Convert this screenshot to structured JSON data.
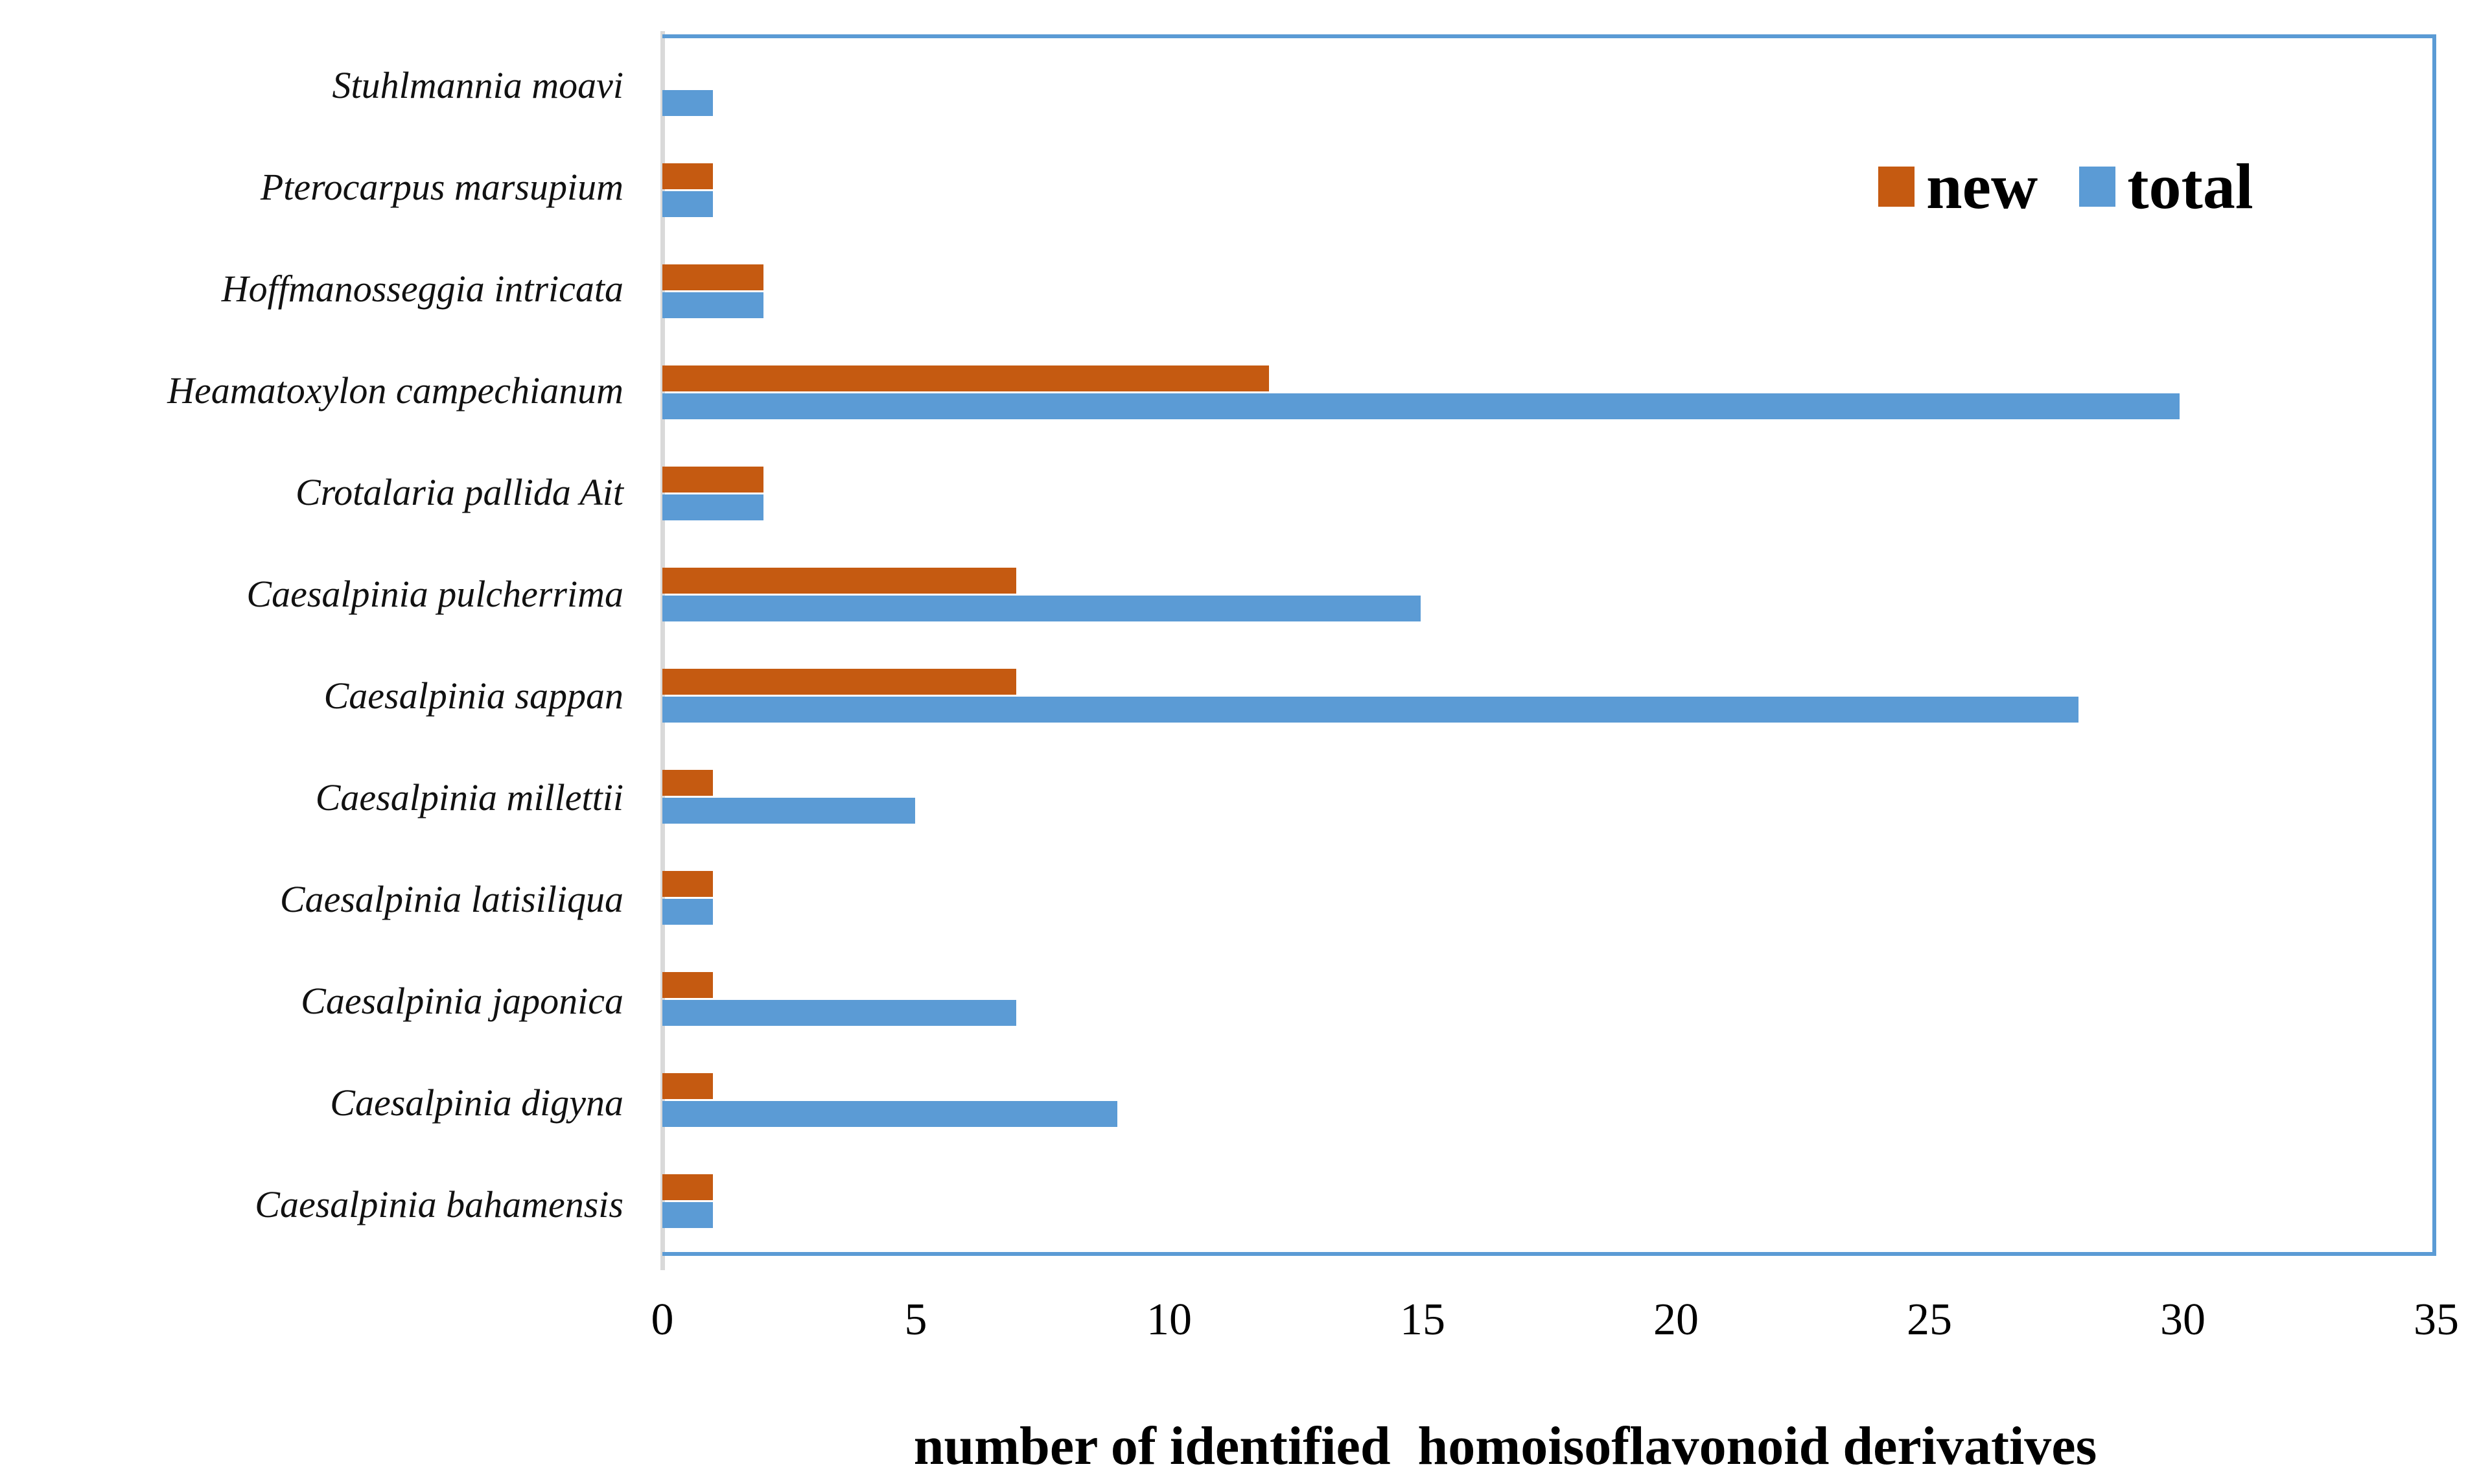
{
  "chart_data": {
    "type": "bar",
    "orientation": "horizontal",
    "title": "",
    "xlabel": "number of identified  homoisoflavonoid derivatives",
    "ylabel": "",
    "categories": [
      "Stuhlmannia moavi",
      "Pterocarpus marsupium",
      "Hoffmanosseggia intricata",
      "Heamatoxylon campechianum",
      "Crotalaria pallida Ait",
      "Caesalpinia pulcherrima",
      "Caesalpinia sappan",
      "Caesalpinia millettii",
      "Caesalpinia latisiliqua",
      "Caesalpinia japonica",
      "Caesalpinia digyna",
      "Caesalpinia bahamensis"
    ],
    "series": [
      {
        "name": "new",
        "color": "#C55A11",
        "values": [
          0,
          1,
          2,
          12,
          2,
          7,
          7,
          1,
          1,
          1,
          1,
          1
        ]
      },
      {
        "name": "total",
        "color": "#5B9BD5",
        "values": [
          1,
          1,
          2,
          30,
          2,
          15,
          28,
          5,
          1,
          7,
          9,
          1
        ]
      }
    ],
    "xlim": [
      0,
      35
    ],
    "xticks": [
      "0",
      "5",
      "10",
      "15",
      "20",
      "25",
      "30",
      "35"
    ],
    "grid": false,
    "legend_position": "top-right",
    "plot_border_color": "#5B9BD5",
    "category_axis_line_color": "#D9D9D9",
    "background_color": "#FFFFFF",
    "text_color": "#000000"
  }
}
